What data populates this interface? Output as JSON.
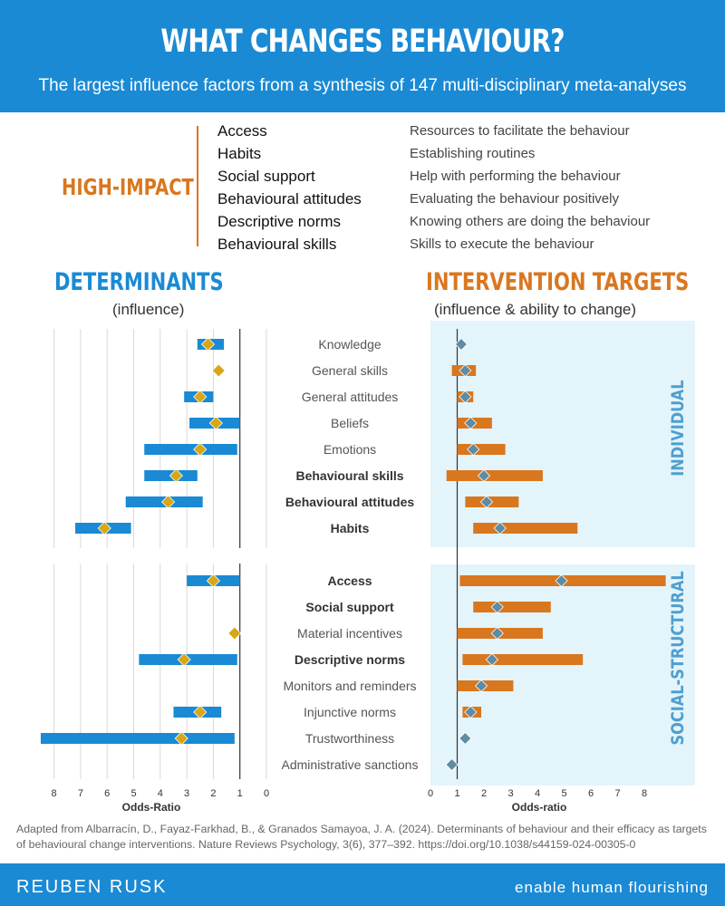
{
  "header": {
    "title": "WHAT CHANGES BEHAVIOUR?",
    "subtitle": "The largest influence factors from a synthesis of 147 multi-disciplinary meta-analyses"
  },
  "high_impact": {
    "label": "HIGH-IMPACT",
    "items": [
      {
        "name": "Access",
        "desc": "Resources to facilitate the behaviour"
      },
      {
        "name": "Habits",
        "desc": "Establishing routines"
      },
      {
        "name": "Social support",
        "desc": "Help with performing the behaviour"
      },
      {
        "name": "Behavioural attitudes",
        "desc": "Evaluating the behaviour positively"
      },
      {
        "name": "Descriptive norms",
        "desc": "Knowing others are doing the behaviour"
      },
      {
        "name": "Behavioural skills",
        "desc": "Skills to execute the behaviour"
      }
    ]
  },
  "sections": {
    "determinants_title": "DETERMINANTS",
    "determinants_sub": "(influence)",
    "targets_title": "INTERVENTION TARGETS",
    "targets_sub": "(influence & ability to change)",
    "group_individual": "INDIVIDUAL",
    "group_social": "SOCIAL-STRUCTURAL"
  },
  "colors": {
    "blue": "#1a8ad4",
    "orange": "#d9771f",
    "gold": "#d8a617",
    "slate": "#5f8ba3",
    "band": "#e4f4fb"
  },
  "chart_data": [
    {
      "type": "forest",
      "title": "DETERMINANTS",
      "xlabel": "Odds-Ratio",
      "xticks": [
        8,
        7,
        6,
        5,
        4,
        3,
        2,
        1,
        0
      ],
      "xlim": [
        8.7,
        0
      ],
      "reference_line": 1,
      "rows": [
        {
          "label": "Knowledge",
          "group": "individual",
          "bold": false,
          "low": 1.6,
          "high": 2.6,
          "point": 2.2
        },
        {
          "label": "General skills",
          "group": "individual",
          "bold": false,
          "low": null,
          "high": null,
          "point": 1.8
        },
        {
          "label": "General attitudes",
          "group": "individual",
          "bold": false,
          "low": 2.0,
          "high": 3.1,
          "point": 2.5
        },
        {
          "label": "Beliefs",
          "group": "individual",
          "bold": false,
          "low": 1.0,
          "high": 2.9,
          "point": 1.9
        },
        {
          "label": "Emotions",
          "group": "individual",
          "bold": false,
          "low": 1.1,
          "high": 4.6,
          "point": 2.5
        },
        {
          "label": "Behavioural skills",
          "group": "individual",
          "bold": true,
          "low": 2.6,
          "high": 4.6,
          "point": 3.4
        },
        {
          "label": "Behavioural attitudes",
          "group": "individual",
          "bold": true,
          "low": 2.4,
          "high": 5.3,
          "point": 3.7
        },
        {
          "label": "Habits",
          "group": "individual",
          "bold": true,
          "low": 5.1,
          "high": 7.2,
          "point": 6.1
        },
        {
          "label": "Access",
          "group": "social",
          "bold": true,
          "low": 1.0,
          "high": 3.0,
          "point": 2.0
        },
        {
          "label": "Social support",
          "group": "social",
          "bold": true,
          "low": null,
          "high": null,
          "point": null
        },
        {
          "label": "Material incentives",
          "group": "social",
          "bold": false,
          "low": null,
          "high": null,
          "point": 1.2
        },
        {
          "label": "Descriptive norms",
          "group": "social",
          "bold": true,
          "low": 1.1,
          "high": 4.8,
          "point": 3.1
        },
        {
          "label": "Monitors and reminders",
          "group": "social",
          "bold": false,
          "low": null,
          "high": null,
          "point": null
        },
        {
          "label": "Injunctive norms",
          "group": "social",
          "bold": false,
          "low": 1.7,
          "high": 3.5,
          "point": 2.5
        },
        {
          "label": "Trustworthiness",
          "group": "social",
          "bold": false,
          "low": 1.2,
          "high": 8.5,
          "point": 3.2
        },
        {
          "label": "Administrative sanctions",
          "group": "social",
          "bold": false,
          "low": null,
          "high": null,
          "point": null
        }
      ]
    },
    {
      "type": "forest",
      "title": "INTERVENTION TARGETS",
      "xlabel": "Odds-ratio",
      "xticks": [
        0,
        1,
        2,
        3,
        4,
        5,
        6,
        7,
        8
      ],
      "xlim": [
        0,
        9.9
      ],
      "reference_line": 1,
      "rows": [
        {
          "label": "Knowledge",
          "low": null,
          "high": null,
          "point": 1.15
        },
        {
          "label": "General skills",
          "low": 0.8,
          "high": 1.7,
          "point": 1.3
        },
        {
          "label": "General attitudes",
          "low": 1.0,
          "high": 1.6,
          "point": 1.3
        },
        {
          "label": "Beliefs",
          "low": 1.0,
          "high": 2.3,
          "point": 1.5
        },
        {
          "label": "Emotions",
          "low": 1.0,
          "high": 2.8,
          "point": 1.6
        },
        {
          "label": "Behavioural skills",
          "low": 0.6,
          "high": 4.2,
          "point": 2.0
        },
        {
          "label": "Behavioural attitudes",
          "low": 1.3,
          "high": 3.3,
          "point": 2.1
        },
        {
          "label": "Habits",
          "low": 1.6,
          "high": 5.5,
          "point": 2.6
        },
        {
          "label": "Access",
          "low": 1.1,
          "high": 8.8,
          "point": 4.9
        },
        {
          "label": "Social support",
          "low": 1.6,
          "high": 4.5,
          "point": 2.5
        },
        {
          "label": "Material incentives",
          "low": 1.0,
          "high": 4.2,
          "point": 2.5
        },
        {
          "label": "Descriptive norms",
          "low": 1.2,
          "high": 5.7,
          "point": 2.3
        },
        {
          "label": "Monitors and reminders",
          "low": 1.0,
          "high": 3.1,
          "point": 1.9
        },
        {
          "label": "Injunctive norms",
          "low": 1.2,
          "high": 1.9,
          "point": 1.5
        },
        {
          "label": "Trustworthiness",
          "low": null,
          "high": null,
          "point": 1.3
        },
        {
          "label": "Administrative sanctions",
          "low": null,
          "high": null,
          "point": 0.8
        }
      ]
    }
  ],
  "footnote": "Adapted from Albarracín, D., Fayaz-Farkhad, B., & Granados Samayoa, J. A. (2024). Determinants of behaviour and their efficacy as targets of behavioural change interventions. Nature Reviews Psychology, 3(6), 377–392. https://doi.org/10.1038/s44159-024-00305-0",
  "footer": {
    "brand": "REUBEN RUSK",
    "tagline": "enable human flourishing"
  }
}
